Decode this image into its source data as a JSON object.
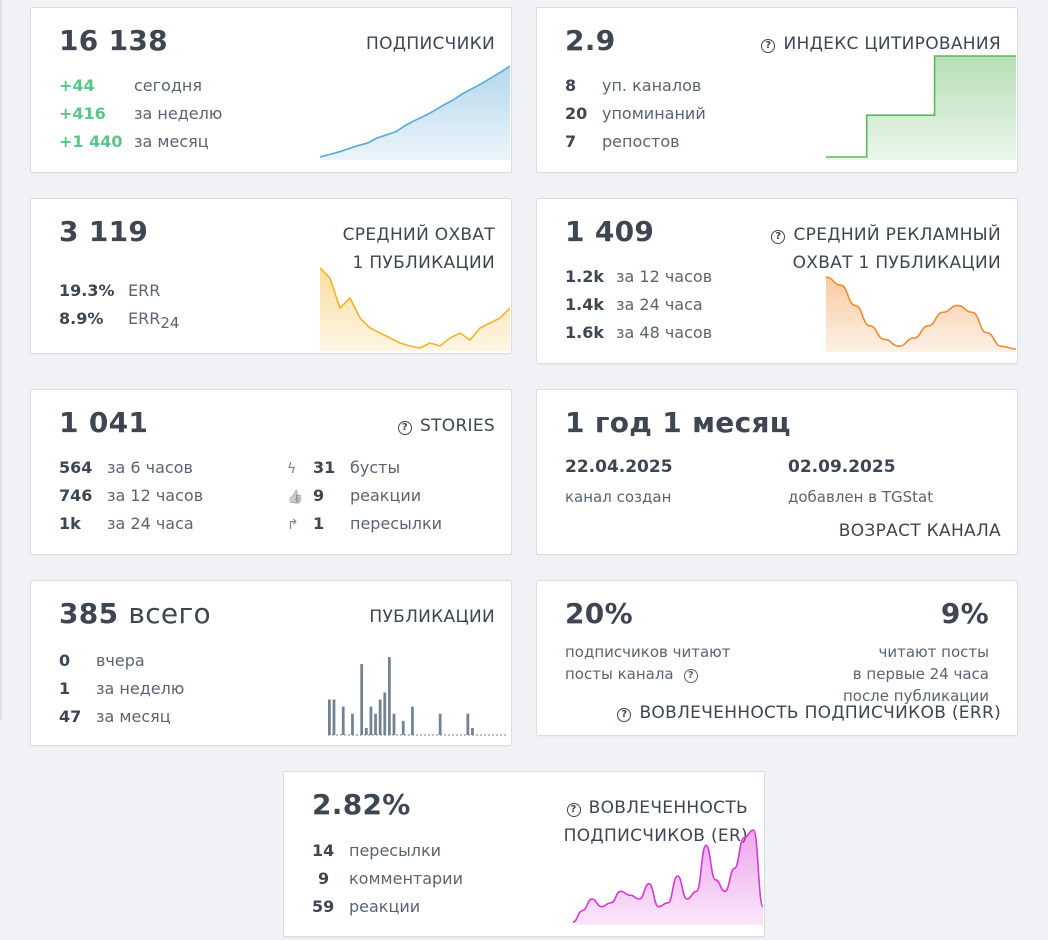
{
  "subscribers": {
    "value": "16 138",
    "title": "ПОДПИСЧИКИ",
    "rows": [
      {
        "n": "+44",
        "l": "сегодня"
      },
      {
        "n": "+416",
        "l": "за неделю"
      },
      {
        "n": "+1 440",
        "l": "за месяц"
      }
    ],
    "color": "#5aa8d6"
  },
  "citation": {
    "value": "2.9",
    "title": "ИНДЕКС ЦИТИРОВАНИЯ",
    "rows": [
      {
        "n": "8",
        "l": "уп. каналов"
      },
      {
        "n": "20",
        "l": "упоминаний"
      },
      {
        "n": "7",
        "l": "репостов"
      }
    ],
    "color": "#5cb85c"
  },
  "reach": {
    "value": "3 119",
    "title1": "СРЕДНИЙ ОХВАТ",
    "title2": "1 ПУБЛИКАЦИИ",
    "rows": [
      {
        "n": "19.3%",
        "l": "ERR"
      },
      {
        "n": "8.9%",
        "l": "ERR",
        "sub": "24"
      }
    ],
    "color": "#f0b429"
  },
  "ad_reach": {
    "value": "1 409",
    "title1": "СРЕДНИЙ РЕКЛАМНЫЙ",
    "title2": "ОХВАТ 1 ПУБЛИКАЦИИ",
    "rows": [
      {
        "n": "1.2k",
        "l": "за 12 часов"
      },
      {
        "n": "1.4k",
        "l": "за 24 часа"
      },
      {
        "n": "1.6k",
        "l": "за 48 часов"
      }
    ],
    "color": "#f08a30"
  },
  "stories": {
    "value": "1 041",
    "title": "STORIES",
    "left": [
      {
        "n": "564",
        "l": "за 6 часов"
      },
      {
        "n": "746",
        "l": "за 12 часов"
      },
      {
        "n": "1k",
        "l": "за 24 часа"
      }
    ],
    "right": [
      {
        "icon": "bolt-icon",
        "glyph": "ϟ",
        "n": "31",
        "l": "бусты"
      },
      {
        "icon": "thumbs-up-icon",
        "glyph": "👍",
        "n": "9",
        "l": "реакции"
      },
      {
        "icon": "forward-arrow-icon",
        "glyph": "↱",
        "n": "1",
        "l": "пересылки"
      }
    ]
  },
  "age": {
    "value": "1 год 1 месяц",
    "created_date": "22.04.2025",
    "created_label": "канал создан",
    "added_date": "02.09.2025",
    "added_label": "добавлен в TGStat",
    "title": "ВОЗРАСТ КАНАЛА"
  },
  "publications": {
    "value": "385",
    "value_suffix": "всего",
    "title": "ПУБЛИКАЦИИ",
    "rows": [
      {
        "n": "0",
        "l": "вчера"
      },
      {
        "n": "1",
        "l": "за неделю"
      },
      {
        "n": "47",
        "l": "за месяц"
      }
    ],
    "bars": [
      5,
      5,
      0,
      4,
      0,
      3,
      0,
      10,
      1,
      4,
      3,
      5,
      6,
      11,
      3,
      0,
      2,
      0,
      4,
      0,
      0,
      0,
      0,
      0,
      3,
      0,
      0,
      0,
      0,
      0,
      3,
      1,
      0,
      0,
      0,
      0,
      0,
      0,
      0
    ],
    "color": "#748393"
  },
  "err": {
    "left_value": "20%",
    "left_line1": "подписчиков читают",
    "left_line2": "посты канала",
    "right_value": "9%",
    "right_line1": "читают посты",
    "right_line2": "в первые 24 часа",
    "right_line3": "после публикации",
    "title": "ВОВЛЕЧЕННОСТЬ ПОДПИСЧИКОВ (ERR)"
  },
  "er": {
    "value": "2.82%",
    "title1": "ВОВЛЕЧЕННОСТЬ",
    "title2": "ПОДПИСЧИКОВ (ER)",
    "rows": [
      {
        "n": "14",
        "l": "пересылки"
      },
      {
        "n": "9",
        "l": "комментарии"
      },
      {
        "n": "59",
        "l": "реакции"
      }
    ],
    "color": "#d63ad6"
  },
  "chart_data": [
    {
      "type": "area",
      "series": [
        {
          "values": [
            14700,
            14740,
            14780,
            14830,
            14880,
            14920,
            15000,
            15050,
            15100,
            15200,
            15280,
            15350,
            15430,
            15520,
            15600,
            15700,
            15780,
            15860,
            15950,
            16040,
            16138
          ]
        }
      ]
    },
    {
      "type": "area",
      "series": [
        {
          "values": [
            0,
            0,
            0,
            1.2,
            1.2,
            1.2,
            1.2,
            1.2,
            2.9,
            2.9,
            2.9,
            2.9,
            2.9,
            2.9,
            2.9
          ]
        }
      ]
    },
    {
      "type": "area",
      "series": [
        {
          "values": [
            3600,
            3500,
            3200,
            3300,
            3100,
            3000,
            2950,
            2900,
            2850,
            2820,
            2800,
            2850,
            2820,
            2900,
            2950,
            2880,
            3000,
            3050,
            3100,
            3200
          ]
        }
      ]
    },
    {
      "type": "area",
      "series": [
        {
          "values": [
            1409,
            1350,
            1200,
            1050,
            950,
            900,
            960,
            1050,
            1150,
            1200,
            1150,
            1000,
            900,
            880
          ]
        }
      ]
    },
    {
      "type": "area",
      "series": [
        {
          "values": [
            1.2,
            1.5,
            1.8,
            1.6,
            1.7,
            2.0,
            1.9,
            1.8,
            2.2,
            1.6,
            1.7,
            2.4,
            1.8,
            2.0,
            3.2,
            2.3,
            2.0,
            2.6,
            3.4,
            3.6,
            1.6
          ]
        }
      ]
    }
  ]
}
